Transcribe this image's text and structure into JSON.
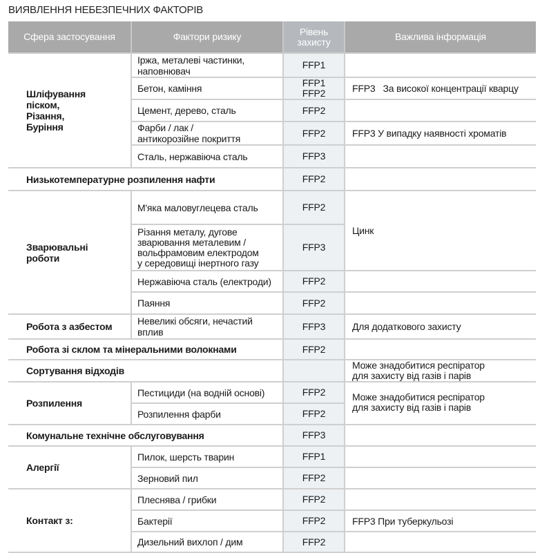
{
  "title": "ВИЯВЛЕННЯ НЕБЕЗПЕЧНИХ ФАКТОРІВ",
  "headers": {
    "sphere": "Сфера застосування",
    "factors": "Фактори ризику",
    "level_1": "Рівень",
    "level_2": "захисту",
    "info": "Важлива інформація"
  },
  "rows": {
    "grinding": {
      "sphere": [
        "Шліфування",
        "піском,",
        "Різання,",
        "Буріння"
      ],
      "items": [
        {
          "factor": [
            "Іржа, металеві частинки,",
            "наповнювач"
          ],
          "level": [
            "FFP1"
          ],
          "info": ""
        },
        {
          "factor": [
            "Бетон, каміння"
          ],
          "level": [
            "FFP1",
            "FFP2"
          ],
          "info": "FFP3   За високої концентрації кварцу"
        },
        {
          "factor": [
            "Цемент, дерево, сталь"
          ],
          "level": [
            "FFP2"
          ],
          "info": ""
        },
        {
          "factor": [
            "Фарби / лак /",
            "антикорозійне покриття"
          ],
          "level": [
            "FFP2"
          ],
          "info": "FFP3 У випадку наявності хроматів"
        },
        {
          "factor": [
            "Сталь, нержавіюча сталь"
          ],
          "level": [
            "FFP3"
          ],
          "info": ""
        }
      ]
    },
    "oil": {
      "sphere": "Низькотемпературне розпилення нафти",
      "level": "FFP2",
      "info": ""
    },
    "welding": {
      "sphere": [
        "Зварювальні",
        "роботи"
      ],
      "items": [
        {
          "factor": [
            "М'яка маловуглецева сталь"
          ],
          "level": "FFP2"
        },
        {
          "factor": [
            "Різання металу, дугове",
            "зварювання металевим /",
            "вольфрамовим електродом",
            "у середовищі інертного газу"
          ],
          "level": "FFP3"
        },
        {
          "factor": [
            "Нержавіюча сталь (електроди)"
          ],
          "level": "FFP2",
          "info": ""
        },
        {
          "factor": [
            "Паяння"
          ],
          "level": "FFP2",
          "info": ""
        }
      ],
      "info_merged": "Цинк"
    },
    "asbestos": {
      "sphere": "Робота з азбестом",
      "factor": [
        "Невеликі обсяги, нечастий",
        "вплив"
      ],
      "level": "FFP3",
      "info": "Для додаткового захисту"
    },
    "glass": {
      "sphere": "Робота зі склом та мінеральними волокнами",
      "level": "FFP2",
      "info": ""
    },
    "waste": {
      "sphere": "Сортування відходів",
      "level": "",
      "info": [
        "Може знадобитися респіратор",
        "для захисту від газів і парів"
      ]
    },
    "spraying": {
      "sphere": "Розпилення",
      "items": [
        {
          "factor": "Пестициди (на водній основі)",
          "level": "FFP2"
        },
        {
          "factor": "Розпилення фарби",
          "level": "FFP2"
        }
      ],
      "info": [
        "Може знадобитися респіратор",
        "для захисту від газів і парів"
      ]
    },
    "municipal": {
      "sphere": "Комунальне технічне обслуговування",
      "level": "FFP3",
      "info": ""
    },
    "allergies": {
      "sphere": "Алергії",
      "items": [
        {
          "factor": "Пилок, шерсть тварин",
          "level": "FFP1",
          "info": ""
        },
        {
          "factor": "Зерновий пил",
          "level": "FFP2",
          "info": ""
        }
      ]
    },
    "contact": {
      "sphere": "Контакт з:",
      "items": [
        {
          "factor": "Плеснява / грибки",
          "level": "FFP2",
          "info": ""
        },
        {
          "factor": "Бактерії",
          "level": "FFP2",
          "info": "FFP3 При туберкульозі"
        },
        {
          "factor": "Дизельний вихлоп / дим",
          "level": "FFP2",
          "info": ""
        }
      ]
    }
  },
  "colors": {
    "header_bg": "#a9a9a9",
    "level_column_bg": "#edf1f4",
    "grid": "#cfcfcf"
  }
}
